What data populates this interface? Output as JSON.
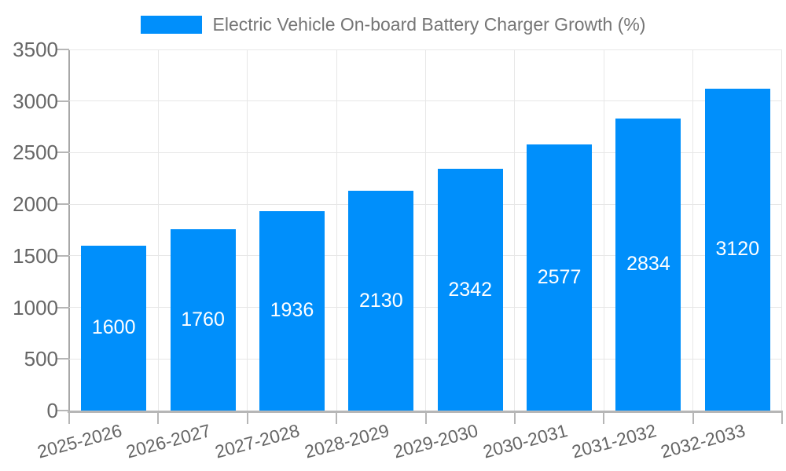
{
  "legend": {
    "items": [
      {
        "label": "Electric Vehicle On-board Battery Charger Growth (%)",
        "color": "#008FFB"
      }
    ],
    "position": "top"
  },
  "chart_data": {
    "type": "bar",
    "title": "",
    "xlabel": "",
    "ylabel": "",
    "categories": [
      "2025-2026",
      "2026-2027",
      "2027-2028",
      "2028-2029",
      "2029-2030",
      "2030-2031",
      "2031-2032",
      "2032-2033"
    ],
    "series": [
      {
        "name": "Electric Vehicle On-board Battery Charger Growth (%)",
        "values": [
          1600,
          1760,
          1936,
          2130,
          2342,
          2577,
          2834,
          3120
        ]
      }
    ],
    "bar_value_labels": [
      "1600",
      "1760",
      "1936",
      "2130",
      "2342",
      "2577",
      "2834",
      "3120"
    ],
    "ylim": [
      0,
      3500
    ],
    "yticks": [
      0,
      500,
      1000,
      1500,
      2000,
      2500,
      3000,
      3500
    ],
    "ytick_labels": [
      "0",
      "500",
      "1000",
      "1500",
      "2000",
      "2500",
      "3000",
      "3500"
    ],
    "grid": true,
    "legend_position": "top",
    "xtick_rotation_deg": -15,
    "colors": {
      "bar": "#008FFB",
      "bar_label": "#ffffff",
      "gridline": "#e7e7e7",
      "axis_line": "#a8a8a8",
      "tick_mark": "#b6b6b6",
      "tick_text": "#666666",
      "legend_text": "#757575",
      "background": "#ffffff"
    }
  }
}
